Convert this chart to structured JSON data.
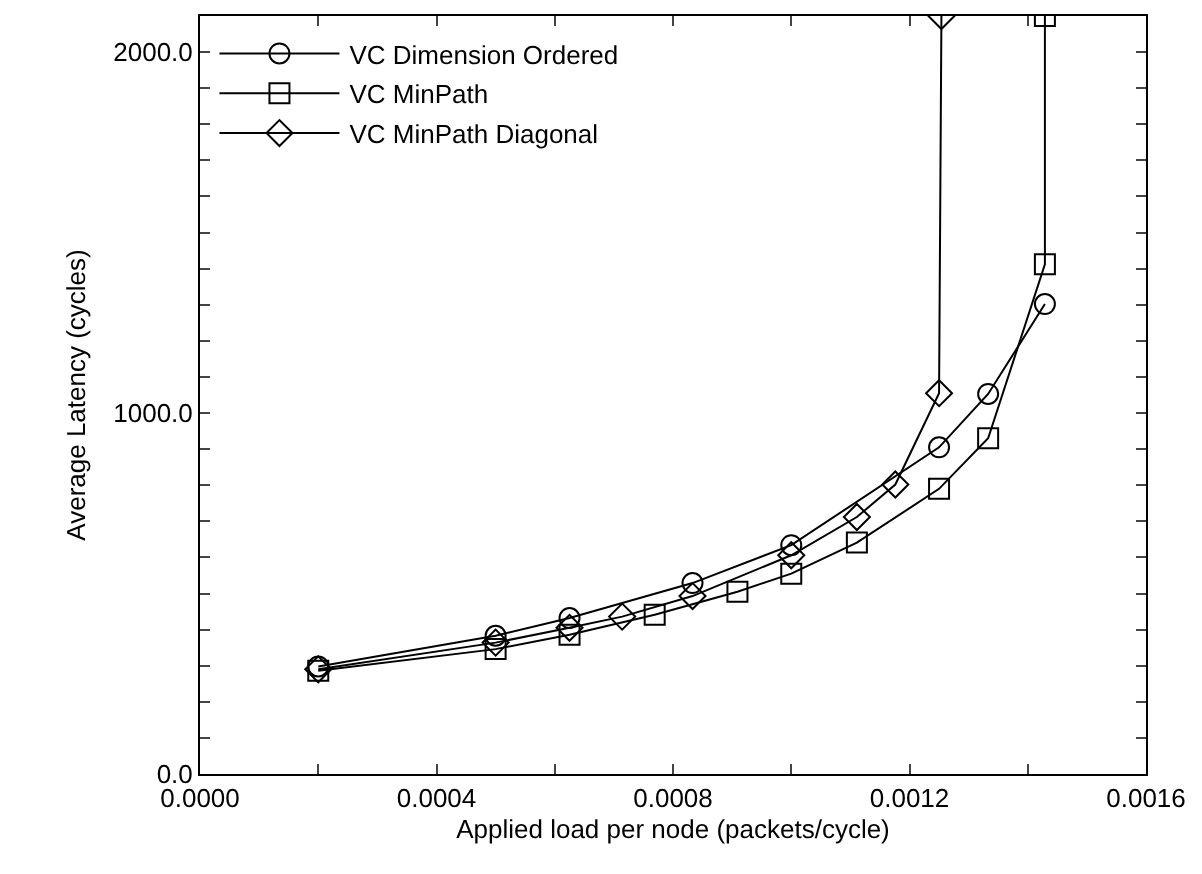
{
  "chart_data": {
    "type": "line",
    "xlabel": "Applied load per node (packets/cycle)",
    "ylabel": "Average Latency (cycles)",
    "xlim": [
      0,
      0.0016
    ],
    "ylim": [
      0,
      2100
    ],
    "xticks": [
      {
        "value": 0,
        "label": "0.0000"
      },
      {
        "value": 0.0002,
        "label": null
      },
      {
        "value": 0.0004,
        "label": "0.0004"
      },
      {
        "value": 0.0006,
        "label": null
      },
      {
        "value": 0.0008,
        "label": "0.0008"
      },
      {
        "value": 0.001,
        "label": null
      },
      {
        "value": 0.0012,
        "label": "0.0012"
      },
      {
        "value": 0.0014,
        "label": null
      },
      {
        "value": 0.0016,
        "label": "0.0016"
      }
    ],
    "yticks": [
      {
        "value": 0,
        "label": "0.0"
      },
      {
        "value": 100,
        "label": null
      },
      {
        "value": 200,
        "label": null
      },
      {
        "value": 300,
        "label": null
      },
      {
        "value": 400,
        "label": null
      },
      {
        "value": 500,
        "label": null
      },
      {
        "value": 600,
        "label": null
      },
      {
        "value": 700,
        "label": null
      },
      {
        "value": 800,
        "label": null
      },
      {
        "value": 900,
        "label": null
      },
      {
        "value": 1000,
        "label": "1000.0"
      },
      {
        "value": 1100,
        "label": null
      },
      {
        "value": 1200,
        "label": null
      },
      {
        "value": 1300,
        "label": null
      },
      {
        "value": 1400,
        "label": null
      },
      {
        "value": 1500,
        "label": null
      },
      {
        "value": 1600,
        "label": null
      },
      {
        "value": 1700,
        "label": null
      },
      {
        "value": 1800,
        "label": null
      },
      {
        "value": 1900,
        "label": null
      },
      {
        "value": 2000,
        "label": "2000.0"
      }
    ],
    "grid": false,
    "legend": "top left",
    "line_style": "solid",
    "series": [
      {
        "name": "VC Dimension Ordered",
        "color": "#000000",
        "marker": "circle",
        "x": [
          0.0002,
          0.0005,
          0.000625,
          0.000833,
          0.001,
          0.00125,
          0.001333,
          0.001429
        ],
        "values": [
          298,
          383,
          432,
          529,
          634,
          905,
          1053,
          1302
        ]
      },
      {
        "name": "VC MinPath",
        "color": "#000000",
        "marker": "square",
        "x": [
          0.0002,
          0.0005,
          0.000625,
          0.000769,
          0.000909,
          0.001,
          0.001111,
          0.00125,
          0.001333,
          0.001429,
          0.001429
        ],
        "values": [
          286,
          346,
          386,
          441,
          505,
          555,
          641,
          790,
          930,
          1412,
          2100
        ]
      },
      {
        "name": "VC MinPath Diagonal",
        "color": "#000000",
        "marker": "diamond",
        "x": [
          0.0002,
          0.0005,
          0.000625,
          0.000714,
          0.000833,
          0.001,
          0.001111,
          0.001176,
          0.00125,
          0.001254
        ],
        "values": [
          290,
          364,
          405,
          436,
          493,
          606,
          712,
          802,
          1055,
          2100
        ]
      }
    ]
  }
}
